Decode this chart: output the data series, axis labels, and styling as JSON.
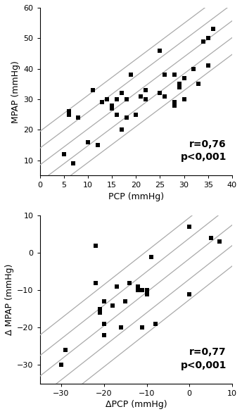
{
  "plot1": {
    "x": [
      5,
      5,
      6,
      6,
      7,
      8,
      10,
      11,
      12,
      13,
      14,
      15,
      15,
      16,
      16,
      17,
      17,
      18,
      18,
      19,
      20,
      21,
      22,
      22,
      25,
      25,
      26,
      26,
      28,
      28,
      28,
      29,
      29,
      30,
      30,
      32,
      33,
      34,
      35,
      35,
      36
    ],
    "y": [
      12,
      12,
      25,
      26,
      9,
      24,
      16,
      33,
      15,
      29,
      30,
      27,
      28,
      25,
      30,
      20,
      32,
      24,
      30,
      38,
      25,
      31,
      30,
      33,
      32,
      46,
      31,
      38,
      28,
      29,
      38,
      34,
      35,
      30,
      37,
      40,
      35,
      49,
      41,
      50,
      53
    ],
    "xlabel": "PCP (mmHg)",
    "ylabel": "MPAP (mmHg)",
    "xlim": [
      0,
      40
    ],
    "ylim": [
      5,
      60
    ],
    "xticks": [
      0,
      5,
      10,
      15,
      20,
      25,
      30,
      35,
      40
    ],
    "yticks": [
      10,
      20,
      30,
      40,
      50,
      60
    ],
    "r": "r=0,76",
    "p": "p<0,001",
    "reg_slope": 1.18,
    "reg_intercept": 8.5,
    "ci_offsets": [
      5.5,
      11.0
    ]
  },
  "plot2": {
    "x": [
      -30,
      -29,
      -22,
      -22,
      -21,
      -21,
      -20,
      -20,
      -20,
      -18,
      -17,
      -17,
      -16,
      -15,
      -14,
      -12,
      -12,
      -11,
      -11,
      -10,
      -10,
      -9,
      -8,
      0,
      0,
      5,
      7
    ],
    "y": [
      -30,
      -26,
      2,
      -8,
      -15,
      -16,
      -19,
      -22,
      -13,
      -14,
      -9,
      -9,
      -20,
      -13,
      -8,
      -10,
      -9,
      -10,
      -20,
      -10,
      -11,
      -1,
      -19,
      7,
      -11,
      4,
      3
    ],
    "xlabel": "ΔPCP (mmHg)",
    "ylabel": "Δ MPAP (mmHg)",
    "xlim": [
      -35,
      10
    ],
    "ylim": [
      -35,
      10
    ],
    "xticks": [
      -30,
      -20,
      -10,
      0,
      10
    ],
    "yticks": [
      -30,
      -20,
      -10,
      0,
      10
    ],
    "r": "r=0,77",
    "p": "p<0,001",
    "reg_slope": 0.9,
    "reg_intercept": -1.5,
    "ci_offsets": [
      5.5,
      11.0
    ]
  },
  "line_color": "#aaaaaa",
  "marker_color": "#000000",
  "bg_color": "#ffffff",
  "text_color": "#000000",
  "fontsize_label": 9,
  "fontsize_tick": 8,
  "fontsize_annot": 10
}
